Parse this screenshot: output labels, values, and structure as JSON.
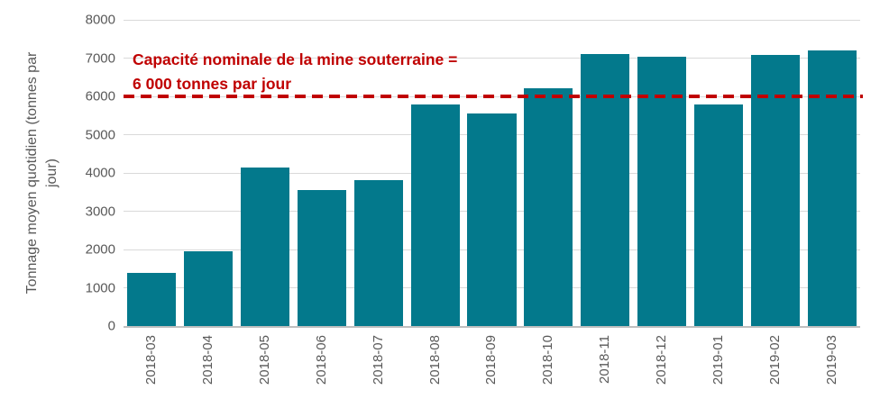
{
  "chart_data": {
    "type": "bar",
    "title": "",
    "xlabel": "",
    "ylabel": "Tonnage moyen quotidien (tonnes par jour)",
    "ylabel_lines": [
      "Tonnage moyen quotidien (tonnes par",
      "jour)"
    ],
    "categories": [
      "2018-03",
      "2018-04",
      "2018-05",
      "2018-06",
      "2018-07",
      "2018-08",
      "2018-09",
      "2018-10",
      "2018-11",
      "2018-12",
      "2019-01",
      "2019-02",
      "2019-03"
    ],
    "values": [
      1400,
      1950,
      4150,
      3550,
      3810,
      5780,
      5550,
      6220,
      7110,
      7030,
      5800,
      7090,
      7200
    ],
    "ylim": [
      0,
      8000
    ],
    "yticks": [
      0,
      1000,
      2000,
      3000,
      4000,
      5000,
      6000,
      7000,
      8000
    ],
    "grid": "horizontal",
    "legend": "none",
    "bar_color": "#03798C",
    "axis_text_color": "#595959",
    "gridline_color": "#d9d9d9",
    "reference_line": {
      "value": 6000,
      "style": "dashed",
      "color": "#c00000",
      "label_lines": [
        "Capacité nominale de la mine souterraine =",
        "6 000 tonnes par jour"
      ]
    }
  }
}
